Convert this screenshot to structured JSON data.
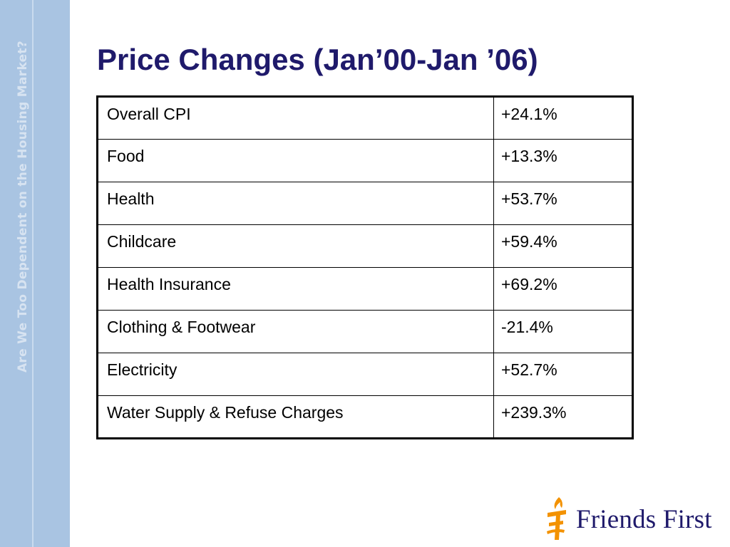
{
  "sidebar": {
    "vertical_text": "Are We Too Dependent on the Housing Market?"
  },
  "slide": {
    "title": "Price Changes (Jan’00-Jan ’06)"
  },
  "table": {
    "rows": [
      {
        "category": "Overall CPI",
        "change": "+24.1%"
      },
      {
        "category": "Food",
        "change": "+13.3%"
      },
      {
        "category": "Health",
        "change": "+53.7%"
      },
      {
        "category": "Childcare",
        "change": "+59.4%"
      },
      {
        "category": "Health Insurance",
        "change": "+69.2%"
      },
      {
        "category": "Clothing & Footwear",
        "change": "-21.4%"
      },
      {
        "category": "Electricity",
        "change": "+52.7%"
      },
      {
        "category": "Water Supply & Refuse Charges",
        "change": "+239.3%"
      }
    ]
  },
  "logo": {
    "text": "Friends First",
    "icon": "torch-logo-icon"
  },
  "colors": {
    "title": "#1f1a6b",
    "sidebar": "#a9c4e2",
    "logo_orange": "#f39200"
  }
}
